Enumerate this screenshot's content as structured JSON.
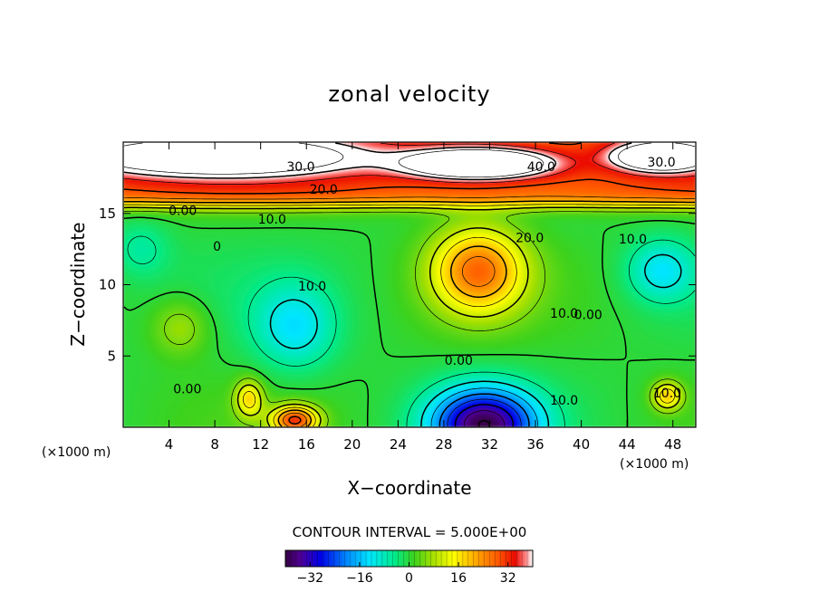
{
  "chart_data": {
    "type": "heatmap",
    "subtype": "filled contour",
    "title": "zonal velocity",
    "xlabel": "X−coordinate",
    "ylabel": "Z−coordinate",
    "x_unit_left": "(×1000 m)",
    "x_unit_right": "(×1000 m)",
    "xlim": [
      0,
      50
    ],
    "ylim": [
      0,
      20
    ],
    "xticks": [
      4,
      8,
      12,
      16,
      20,
      24,
      28,
      32,
      36,
      40,
      44,
      48
    ],
    "yticks": [
      5,
      10,
      15
    ],
    "contour_interval_text": "CONTOUR INTERVAL = 5.000E+00",
    "colorbar": {
      "range": [
        -40,
        40
      ],
      "ticks": [
        -32,
        -16,
        0,
        16,
        32
      ],
      "tick_labels": [
        "−32",
        "−16",
        "0",
        "16",
        "32"
      ]
    },
    "contour_labels": [
      {
        "text": "30.0",
        "x": 15.5,
        "z": 18.3
      },
      {
        "text": "40.0",
        "x": 36.5,
        "z": 18.3
      },
      {
        "text": "30.0",
        "x": 47.0,
        "z": 18.6
      },
      {
        "text": "20.0",
        "x": 17.5,
        "z": 16.7
      },
      {
        "text": "0.00",
        "x": 5.2,
        "z": 15.2
      },
      {
        "text": "10.0",
        "x": 13.0,
        "z": 14.6
      },
      {
        "text": "20.0",
        "x": 35.5,
        "z": 13.3
      },
      {
        "text": "10.0",
        "x": 44.5,
        "z": 13.2
      },
      {
        "text": "0",
        "x": 8.2,
        "z": 12.7
      },
      {
        "text": "10.0",
        "x": 16.5,
        "z": 9.9
      },
      {
        "text": "10.0",
        "x": 38.5,
        "z": 8.0
      },
      {
        "text": "0.00",
        "x": 40.6,
        "z": 7.9
      },
      {
        "text": "0.00",
        "x": 29.3,
        "z": 4.7
      },
      {
        "text": "0.00",
        "x": 5.6,
        "z": 2.7
      },
      {
        "text": "10.0",
        "x": 38.5,
        "z": 1.9
      },
      {
        "text": "10.0",
        "x": 47.5,
        "z": 2.4
      }
    ],
    "field_features": [
      {
        "kind": "jet core",
        "x": 31,
        "z": 18.5,
        "value": 42,
        "sx": 6,
        "sz": 1.0
      },
      {
        "kind": "upper maximum",
        "x": 8,
        "z": 19.0,
        "value": 32,
        "sx": 12,
        "sz": 1.3
      },
      {
        "kind": "upper maximum",
        "x": 47,
        "z": 19.0,
        "value": 36,
        "sx": 4,
        "sz": 1.0
      },
      {
        "kind": "descending maximum",
        "x": 31,
        "z": 11.0,
        "value": 26,
        "sx": 4,
        "sz": 3.0
      },
      {
        "kind": "low-level maximum",
        "x": 15,
        "z": 0.5,
        "value": 30,
        "sx": 2,
        "sz": 1.0
      },
      {
        "kind": "low-level maximum",
        "x": 11,
        "z": 2.0,
        "value": 16,
        "sx": 1.2,
        "sz": 1.3
      },
      {
        "kind": "low-level maximum",
        "x": 47.5,
        "z": 2.2,
        "value": 18,
        "sx": 1.3,
        "sz": 1.0
      },
      {
        "kind": "low-level minimum",
        "x": 31.5,
        "z": 0.2,
        "value": -38,
        "sx": 4.5,
        "sz": 2.5
      },
      {
        "kind": "minimum",
        "x": 15,
        "z": 7.0,
        "value": -12,
        "sx": 3.5,
        "sz": 3.0
      },
      {
        "kind": "minimum",
        "x": 47,
        "z": 11.0,
        "value": -12,
        "sx": 3.0,
        "sz": 2.2
      },
      {
        "kind": "minimum",
        "x": 1.5,
        "z": 12.5,
        "value": -6,
        "sx": 2.5,
        "sz": 2.0
      },
      {
        "kind": "local high",
        "x": 5,
        "z": 7.0,
        "value": 8,
        "sx": 2.5,
        "sz": 2.0
      }
    ]
  }
}
